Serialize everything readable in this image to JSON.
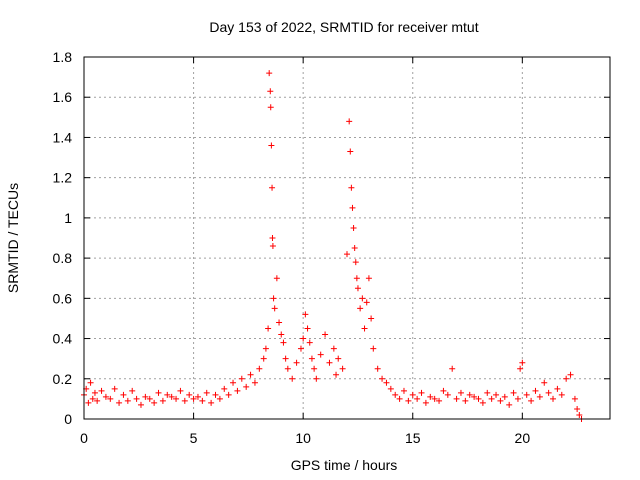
{
  "chart_data": {
    "type": "scatter",
    "title": "Day 153 of 2022, SRMTID for receiver mtut",
    "xlabel": "GPS time / hours",
    "ylabel": "SRMTID / TECUs",
    "xlim": [
      0,
      24
    ],
    "ylim": [
      0,
      1.8
    ],
    "xticks": [
      0,
      5,
      10,
      15,
      20
    ],
    "xtick_labels": [
      "0",
      "5",
      "10",
      "15",
      "20"
    ],
    "yticks": [
      0,
      0.2,
      0.4,
      0.6,
      0.8,
      1.0,
      1.2,
      1.4,
      1.6,
      1.8
    ],
    "ytick_labels": [
      "0",
      "0.2",
      "0.4",
      "0.6",
      "0.8",
      "1",
      "1.2",
      "1.4",
      "1.6",
      "1.8"
    ],
    "grid": true,
    "marker": "plus",
    "color": "#ff0000",
    "series": [
      {
        "name": "SRMTID",
        "x": [
          0.0,
          0.1,
          0.2,
          0.3,
          0.4,
          0.5,
          0.6,
          0.8,
          1.0,
          1.2,
          1.4,
          1.6,
          1.8,
          2.0,
          2.2,
          2.4,
          2.6,
          2.8,
          3.0,
          3.2,
          3.4,
          3.6,
          3.8,
          4.0,
          4.2,
          4.4,
          4.6,
          4.8,
          5.0,
          5.2,
          5.4,
          5.6,
          5.8,
          6.0,
          6.2,
          6.4,
          6.6,
          6.8,
          7.0,
          7.2,
          7.4,
          7.6,
          7.8,
          8.0,
          8.2,
          8.3,
          8.4,
          8.45,
          8.5,
          8.52,
          8.55,
          8.58,
          8.6,
          8.62,
          8.65,
          8.7,
          8.8,
          8.9,
          9.0,
          9.1,
          9.2,
          9.3,
          9.5,
          9.7,
          9.9,
          10.0,
          10.1,
          10.2,
          10.3,
          10.4,
          10.5,
          10.6,
          10.8,
          11.0,
          11.2,
          11.4,
          11.5,
          11.6,
          11.8,
          12.0,
          12.1,
          12.15,
          12.2,
          12.25,
          12.3,
          12.35,
          12.4,
          12.45,
          12.5,
          12.6,
          12.7,
          12.8,
          12.9,
          13.0,
          13.1,
          13.2,
          13.4,
          13.6,
          13.8,
          14.0,
          14.2,
          14.4,
          14.6,
          14.8,
          15.0,
          15.2,
          15.4,
          15.6,
          15.8,
          16.0,
          16.2,
          16.4,
          16.6,
          16.8,
          17.0,
          17.2,
          17.4,
          17.6,
          17.8,
          18.0,
          18.2,
          18.4,
          18.6,
          18.8,
          19.0,
          19.2,
          19.4,
          19.6,
          19.8,
          19.9,
          20.0,
          20.2,
          20.4,
          20.6,
          20.8,
          21.0,
          21.2,
          21.4,
          21.6,
          21.8,
          22.0,
          22.2,
          22.4,
          22.5,
          22.6,
          22.7
        ],
        "y": [
          0.12,
          0.15,
          0.08,
          0.18,
          0.1,
          0.13,
          0.09,
          0.14,
          0.11,
          0.1,
          0.15,
          0.08,
          0.12,
          0.09,
          0.14,
          0.1,
          0.07,
          0.11,
          0.1,
          0.08,
          0.13,
          0.09,
          0.12,
          0.11,
          0.1,
          0.14,
          0.09,
          0.12,
          0.1,
          0.11,
          0.09,
          0.13,
          0.08,
          0.12,
          0.1,
          0.15,
          0.12,
          0.18,
          0.14,
          0.2,
          0.16,
          0.22,
          0.18,
          0.25,
          0.3,
          0.35,
          0.45,
          1.72,
          1.63,
          1.55,
          1.36,
          1.15,
          0.9,
          0.86,
          0.6,
          0.55,
          0.7,
          0.48,
          0.42,
          0.38,
          0.3,
          0.25,
          0.2,
          0.28,
          0.35,
          0.4,
          0.52,
          0.45,
          0.38,
          0.3,
          0.25,
          0.2,
          0.32,
          0.42,
          0.28,
          0.35,
          0.22,
          0.3,
          0.25,
          0.82,
          1.48,
          1.33,
          1.15,
          1.05,
          0.95,
          0.85,
          0.78,
          0.7,
          0.65,
          0.55,
          0.6,
          0.45,
          0.58,
          0.7,
          0.5,
          0.35,
          0.25,
          0.2,
          0.18,
          0.15,
          0.12,
          0.1,
          0.14,
          0.09,
          0.12,
          0.1,
          0.13,
          0.08,
          0.11,
          0.1,
          0.09,
          0.14,
          0.12,
          0.25,
          0.1,
          0.13,
          0.09,
          0.12,
          0.11,
          0.1,
          0.08,
          0.13,
          0.1,
          0.12,
          0.09,
          0.11,
          0.07,
          0.13,
          0.1,
          0.25,
          0.28,
          0.12,
          0.09,
          0.14,
          0.11,
          0.18,
          0.13,
          0.1,
          0.15,
          0.12,
          0.2,
          0.22,
          0.1,
          0.05,
          0.02,
          0.0
        ]
      }
    ]
  }
}
